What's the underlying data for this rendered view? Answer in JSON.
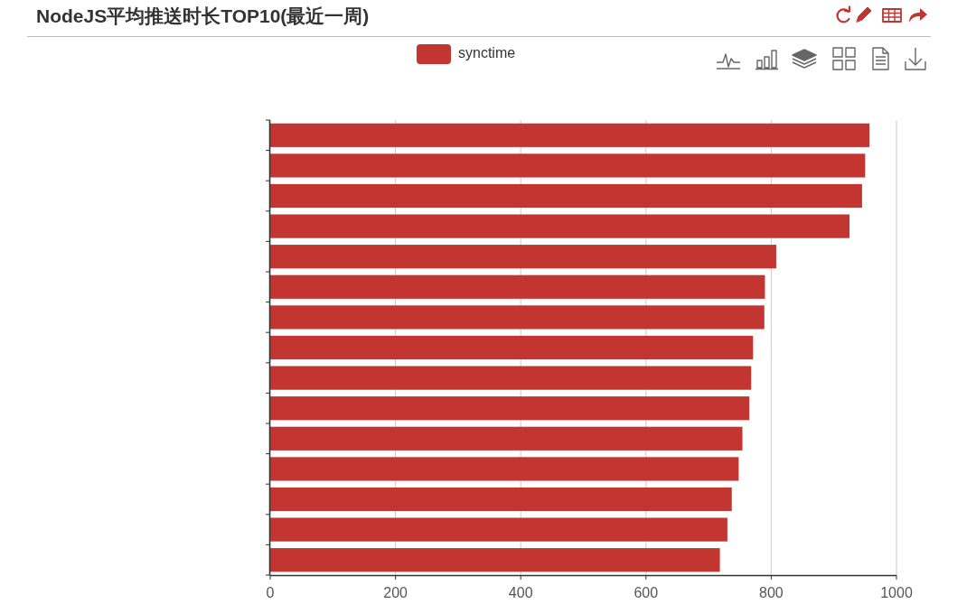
{
  "chart_data": {
    "type": "bar",
    "orientation": "horizontal",
    "title": "NodeJS平均推送时长TOP10(最近一周)",
    "categories": [
      null,
      null,
      null,
      null,
      null,
      null,
      null,
      null,
      null,
      null,
      null,
      null,
      null,
      null,
      null
    ],
    "series": [
      {
        "name": "synctime",
        "color": "#c23531",
        "values": [
          957,
          950,
          945,
          925,
          808,
          790,
          789,
          771,
          768,
          765,
          754,
          748,
          737,
          730,
          718
        ]
      }
    ],
    "xlim": [
      0,
      1000
    ],
    "xticks": [
      0,
      200,
      400,
      600,
      800,
      1000
    ],
    "grid": "x",
    "legend": "top"
  }
}
